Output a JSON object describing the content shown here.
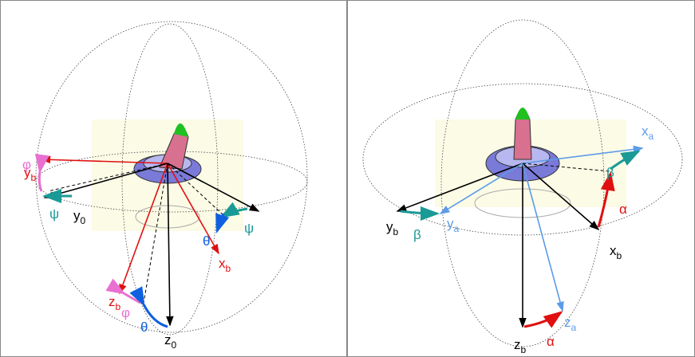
{
  "left": {
    "labels": [
      {
        "text": "φ"
      },
      {
        "text": "y",
        "sub": "b"
      },
      {
        "text": "ψ"
      },
      {
        "text": "y",
        "sub": "0"
      },
      {
        "text": "ψ"
      },
      {
        "text": "θ"
      },
      {
        "text": "x",
        "sub": "b"
      },
      {
        "text": "z",
        "sub": "b"
      },
      {
        "text": "φ"
      },
      {
        "text": "θ"
      },
      {
        "text": "z",
        "sub": "0"
      }
    ]
  },
  "right": {
    "labels": [
      {
        "text": "x",
        "sub": "a"
      },
      {
        "text": "β"
      },
      {
        "text": "α"
      },
      {
        "text": "x",
        "sub": "b"
      },
      {
        "text": "y",
        "sub": "b"
      },
      {
        "text": "β"
      },
      {
        "text": "y",
        "sub": "a"
      },
      {
        "text": "z",
        "sub": "a"
      },
      {
        "text": "z",
        "sub": "b"
      },
      {
        "text": "α"
      }
    ]
  }
}
